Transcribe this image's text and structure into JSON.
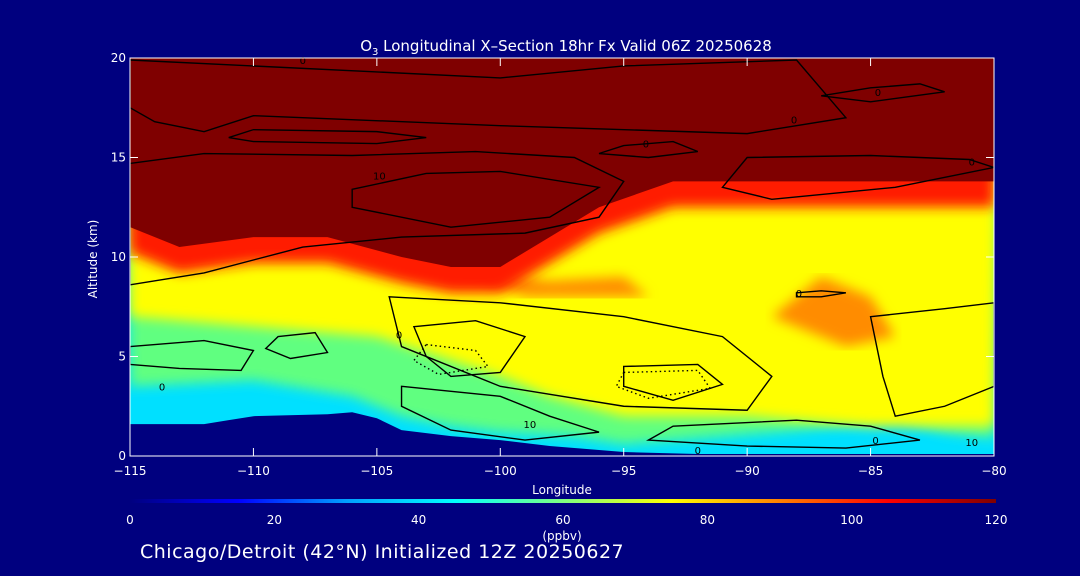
{
  "chart_data": {
    "type": "heatmap",
    "title_species": "O",
    "title_sub": "3",
    "title_rest": " Longitudinal X–Section 18hr  Fx Valid 06Z 20250628",
    "xlabel": "Longitude",
    "ylabel": "Altitude (km)",
    "xlim": [
      -115,
      -80
    ],
    "ylim": [
      0,
      20
    ],
    "x_ticks": [
      -115,
      -110,
      -105,
      -100,
      -95,
      -90,
      -85,
      -80
    ],
    "x_tick_labels": [
      "−115",
      "−110",
      "−105",
      "−100",
      "−95",
      "−90",
      "−85",
      "−80"
    ],
    "y_ticks": [
      0,
      5,
      10,
      15,
      20
    ],
    "y_tick_labels": [
      "0",
      "5",
      "10",
      "15",
      "20"
    ],
    "colorbar": {
      "min": 0,
      "max": 120,
      "ticks": [
        0,
        20,
        40,
        60,
        80,
        100,
        120
      ],
      "tick_labels": [
        "0",
        "20",
        "40",
        "60",
        "80",
        "100",
        "120"
      ],
      "unit_label": "(ppbv)",
      "colormap": [
        "#00007f",
        "#0000ff",
        "#00a0ff",
        "#00ffff",
        "#80ff80",
        "#ffff00",
        "#ff8000",
        "#ff0000",
        "#7f0000"
      ]
    },
    "terrain_km": {
      "lon": [
        -115,
        -112,
        -111,
        -110,
        -107,
        -106,
        -105,
        -104,
        -102,
        -100,
        -98,
        -95,
        -92,
        -80
      ],
      "alt": [
        1.6,
        1.6,
        1.8,
        2.0,
        2.1,
        2.2,
        1.9,
        1.3,
        1.0,
        0.8,
        0.5,
        0.2,
        0.1,
        0.1
      ]
    },
    "tropopause_km": {
      "lon": [
        -115,
        -113,
        -110,
        -107,
        -104,
        -102,
        -100,
        -98,
        -96,
        -93,
        -90,
        -87,
        -85,
        -80
      ],
      "alt": [
        11.5,
        10.5,
        11.0,
        11.0,
        10.0,
        9.5,
        9.5,
        11.0,
        12.5,
        13.8,
        13.8,
        13.8,
        13.8,
        13.8
      ]
    },
    "yellow_base_km": {
      "lon": [
        -115,
        -110,
        -105,
        -100,
        -98,
        -95,
        -90,
        -85,
        -80
      ],
      "alt": [
        7.0,
        6.5,
        6.0,
        4.0,
        3.0,
        2.0,
        2.0,
        1.5,
        1.5
      ]
    },
    "green_base_km": {
      "lon": [
        -115,
        -110,
        -106,
        -104,
        -102,
        -100,
        -97,
        -95,
        -92,
        -88,
        -84,
        -82,
        -80
      ],
      "alt": [
        3.5,
        3.8,
        3.0,
        2.0,
        1.5,
        1.2,
        1.0,
        0.6,
        0.9,
        1.3,
        1.8,
        1.2,
        0.9
      ]
    },
    "orange_regions": [
      {
        "lon": [
          -87,
          -85,
          -84,
          -86,
          -89
        ],
        "alt": [
          9.0,
          8.0,
          6.0,
          5.5,
          7.0
        ]
      },
      {
        "lon": [
          -102,
          -98,
          -95,
          -94,
          -99
        ],
        "alt": [
          9.5,
          8.8,
          9.0,
          8.0,
          8.0
        ]
      }
    ],
    "contour_labels": [
      {
        "text": "0",
        "lon": -108,
        "alt": 19.9
      },
      {
        "text": "0",
        "lon": -84.7,
        "alt": 18.3
      },
      {
        "text": "0",
        "lon": -88.1,
        "alt": 16.9
      },
      {
        "text": "0",
        "lon": -94.1,
        "alt": 15.7
      },
      {
        "text": "0",
        "lon": -80.9,
        "alt": 14.8
      },
      {
        "text": "10",
        "lon": -104.9,
        "alt": 14.1
      },
      {
        "text": "0",
        "lon": -87.9,
        "alt": 8.2
      },
      {
        "text": "0",
        "lon": -104.1,
        "alt": 6.1
      },
      {
        "text": "0",
        "lon": -113.7,
        "alt": 3.5
      },
      {
        "text": "10",
        "lon": -98.8,
        "alt": 1.6
      },
      {
        "text": "0",
        "lon": -92.0,
        "alt": 0.3
      },
      {
        "text": "0",
        "lon": -84.8,
        "alt": 0.8
      },
      {
        "text": "10",
        "lon": -80.9,
        "alt": 0.7
      }
    ]
  },
  "footer": "Chicago/Detroit (42°N) Initialized 12Z 20250627"
}
